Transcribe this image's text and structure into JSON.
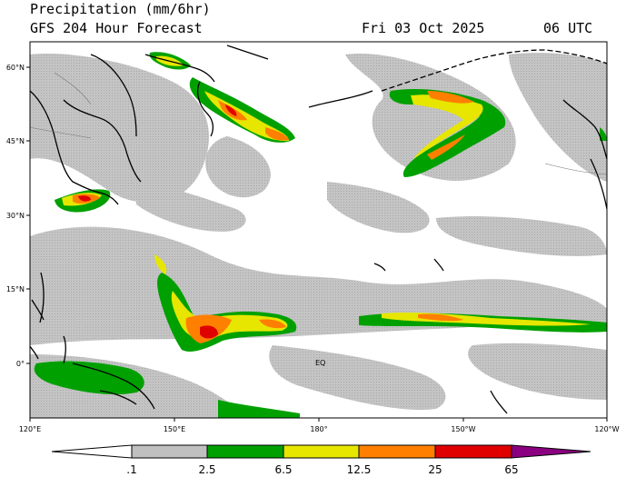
{
  "header": {
    "title": "Precipitation (mm/6hr)",
    "model": "GFS 204 Hour Forecast",
    "date": "Fri 03 Oct 2025",
    "time": "06 UTC"
  },
  "map": {
    "lat_labels": [
      "60°N",
      "45°N",
      "30°N",
      "15°N",
      "0°"
    ],
    "lon_labels": [
      "120°E",
      "150°E",
      "180°",
      "150°W",
      "120°W"
    ],
    "annotations": {
      "equator": "EQ"
    },
    "extent": {
      "lon_west": 120,
      "lon_east": 240,
      "lat_south": -12,
      "lat_north": 66
    }
  },
  "legend": {
    "ticks": [
      ".1",
      "2.5",
      "6.5",
      "12.5",
      "25",
      "65"
    ],
    "colors": [
      "#ffffff",
      "#c0c0c0",
      "#00a000",
      "#e6e600",
      "#ff7f00",
      "#e00000",
      "#8b0080"
    ]
  }
}
